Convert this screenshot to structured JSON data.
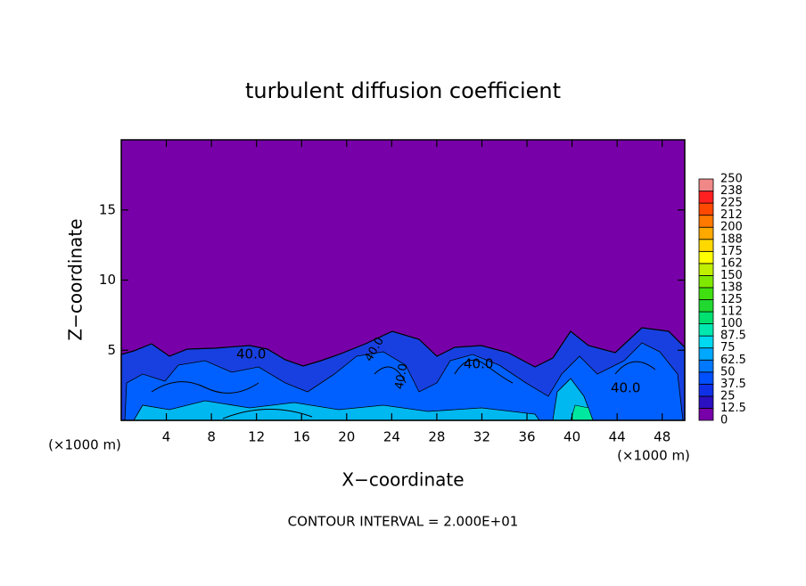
{
  "chart_data": {
    "type": "contour",
    "title": "turbulent diffusion coefficient",
    "xlabel": "X−coordinate",
    "ylabel": "Z−coordinate",
    "x_unit": "(×1000 m)",
    "x_unit_right": "(×1000 m)",
    "footer": "CONTOUR INTERVAL = 2.000E+01",
    "contour_labels": [
      "40.0",
      "40.0",
      "40.0",
      "40.0",
      "40.0"
    ],
    "xlim": [
      0,
      50
    ],
    "ylim": [
      0,
      20
    ],
    "xticks": [
      4,
      8,
      12,
      16,
      20,
      24,
      28,
      32,
      36,
      40,
      44,
      48
    ],
    "yticks": [
      5,
      10,
      15
    ],
    "levels": [
      0,
      12.5,
      25,
      37.5,
      50,
      62.5,
      75,
      87.5,
      100,
      112,
      125,
      138,
      150,
      162,
      175,
      188,
      200,
      212,
      225,
      238,
      250
    ],
    "level_colors": [
      "#7800a8",
      "#2a10c0",
      "#1030e8",
      "#0050ff",
      "#0078ff",
      "#00a8ff",
      "#00d8f0",
      "#00e8b0",
      "#00e070",
      "#20d830",
      "#40e010",
      "#80e800",
      "#c0f000",
      "#ffff00",
      "#ffd800",
      "#ffa800",
      "#ff7800",
      "#ff4800",
      "#ff2020",
      "#f08888"
    ]
  }
}
